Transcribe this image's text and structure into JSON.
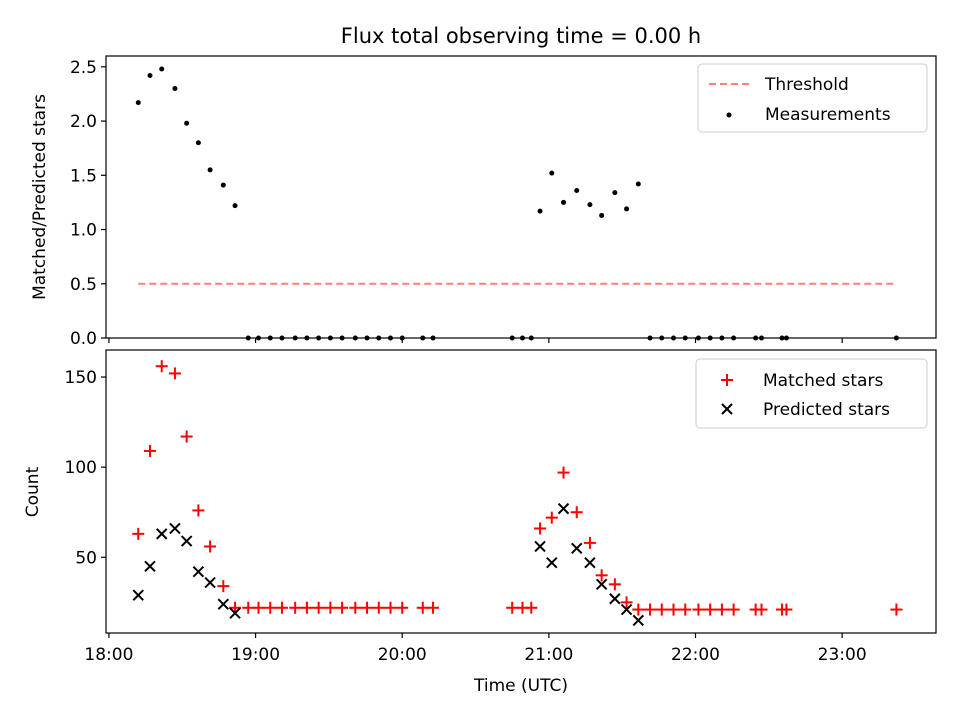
{
  "chart_data": [
    {
      "type": "scatter",
      "title": "Flux total observing time = 0.00 h",
      "xlabel": "",
      "ylabel": "Matched/Predicted stars",
      "xlim": [
        17.98,
        23.64
      ],
      "ylim": [
        0,
        2.6
      ],
      "yticks": [
        0.0,
        0.5,
        1.0,
        1.5,
        2.0,
        2.5
      ],
      "ytick_labels": [
        "0.0",
        "0.5",
        "1.0",
        "1.5",
        "2.0",
        "2.5"
      ],
      "xticks": [
        18,
        19,
        20,
        21,
        22,
        23
      ],
      "legend_position": "top-right",
      "series": [
        {
          "name": "Threshold",
          "style": "dashed-line",
          "color": "#ff7f7f",
          "points": [
            [
              18.2,
              0.5
            ],
            [
              23.37,
              0.5
            ]
          ]
        },
        {
          "name": "Measurements",
          "style": "dot",
          "color": "#000000",
          "points": [
            [
              18.2,
              2.17
            ],
            [
              18.28,
              2.42
            ],
            [
              18.36,
              2.48
            ],
            [
              18.45,
              2.3
            ],
            [
              18.53,
              1.98
            ],
            [
              18.61,
              1.8
            ],
            [
              18.69,
              1.55
            ],
            [
              18.78,
              1.41
            ],
            [
              18.86,
              1.22
            ],
            [
              18.95,
              0.0
            ],
            [
              19.02,
              0.0
            ],
            [
              19.1,
              0.0
            ],
            [
              19.18,
              0.0
            ],
            [
              19.27,
              0.0
            ],
            [
              19.35,
              0.0
            ],
            [
              19.43,
              0.0
            ],
            [
              19.51,
              0.0
            ],
            [
              19.59,
              0.0
            ],
            [
              19.68,
              0.0
            ],
            [
              19.76,
              0.0
            ],
            [
              19.84,
              0.0
            ],
            [
              19.92,
              0.0
            ],
            [
              20.0,
              0.0
            ],
            [
              20.14,
              0.0
            ],
            [
              20.21,
              0.0
            ],
            [
              20.75,
              0.0
            ],
            [
              20.82,
              0.0
            ],
            [
              20.88,
              0.0
            ],
            [
              20.94,
              1.17
            ],
            [
              21.02,
              1.52
            ],
            [
              21.1,
              1.25
            ],
            [
              21.19,
              1.36
            ],
            [
              21.28,
              1.23
            ],
            [
              21.36,
              1.13
            ],
            [
              21.45,
              1.34
            ],
            [
              21.53,
              1.19
            ],
            [
              21.61,
              1.42
            ],
            [
              21.69,
              0.0
            ],
            [
              21.77,
              0.0
            ],
            [
              21.85,
              0.0
            ],
            [
              21.93,
              0.0
            ],
            [
              22.02,
              0.0
            ],
            [
              22.1,
              0.0
            ],
            [
              22.18,
              0.0
            ],
            [
              22.26,
              0.0
            ],
            [
              22.41,
              0.0
            ],
            [
              22.45,
              0.0
            ],
            [
              22.59,
              0.0
            ],
            [
              22.62,
              0.0
            ],
            [
              23.37,
              0.0
            ]
          ]
        }
      ]
    },
    {
      "type": "scatter",
      "title": "",
      "xlabel": "Time (UTC)",
      "ylabel": "Count",
      "xlim": [
        17.98,
        23.64
      ],
      "ylim": [
        8,
        165
      ],
      "yticks": [
        50,
        100,
        150
      ],
      "ytick_labels": [
        "50",
        "100",
        "150"
      ],
      "xticks": [
        18,
        19,
        20,
        21,
        22,
        23
      ],
      "xtick_labels": [
        "18:00",
        "19:00",
        "20:00",
        "21:00",
        "22:00",
        "23:00"
      ],
      "legend_position": "top-right",
      "series": [
        {
          "name": "Matched stars",
          "style": "plus",
          "color": "#ff0000",
          "points": [
            [
              18.2,
              63
            ],
            [
              18.28,
              109
            ],
            [
              18.36,
              156
            ],
            [
              18.45,
              152
            ],
            [
              18.53,
              117
            ],
            [
              18.61,
              76
            ],
            [
              18.69,
              56
            ],
            [
              18.78,
              34
            ],
            [
              18.86,
              22
            ],
            [
              18.95,
              22
            ],
            [
              19.02,
              22
            ],
            [
              19.1,
              22
            ],
            [
              19.18,
              22
            ],
            [
              19.27,
              22
            ],
            [
              19.35,
              22
            ],
            [
              19.43,
              22
            ],
            [
              19.51,
              22
            ],
            [
              19.59,
              22
            ],
            [
              19.68,
              22
            ],
            [
              19.76,
              22
            ],
            [
              19.84,
              22
            ],
            [
              19.92,
              22
            ],
            [
              20.0,
              22
            ],
            [
              20.14,
              22
            ],
            [
              20.21,
              22
            ],
            [
              20.75,
              22
            ],
            [
              20.82,
              22
            ],
            [
              20.88,
              22
            ],
            [
              20.94,
              66
            ],
            [
              21.02,
              72
            ],
            [
              21.1,
              97
            ],
            [
              21.19,
              75
            ],
            [
              21.28,
              58
            ],
            [
              21.36,
              40
            ],
            [
              21.45,
              35
            ],
            [
              21.53,
              25
            ],
            [
              21.61,
              21
            ],
            [
              21.69,
              21
            ],
            [
              21.77,
              21
            ],
            [
              21.85,
              21
            ],
            [
              21.93,
              21
            ],
            [
              22.02,
              21
            ],
            [
              22.1,
              21
            ],
            [
              22.18,
              21
            ],
            [
              22.26,
              21
            ],
            [
              22.41,
              21
            ],
            [
              22.45,
              21
            ],
            [
              22.59,
              21
            ],
            [
              22.62,
              21
            ],
            [
              23.37,
              21
            ]
          ]
        },
        {
          "name": "Predicted stars",
          "style": "cross",
          "color": "#000000",
          "points": [
            [
              18.2,
              29
            ],
            [
              18.28,
              45
            ],
            [
              18.36,
              63
            ],
            [
              18.45,
              66
            ],
            [
              18.53,
              59
            ],
            [
              18.61,
              42
            ],
            [
              18.69,
              36
            ],
            [
              18.78,
              24
            ],
            [
              18.86,
              19
            ],
            [
              20.94,
              56
            ],
            [
              21.02,
              47
            ],
            [
              21.1,
              77
            ],
            [
              21.19,
              55
            ],
            [
              21.28,
              47
            ],
            [
              21.36,
              35
            ],
            [
              21.45,
              27
            ],
            [
              21.53,
              21
            ],
            [
              21.61,
              15
            ]
          ]
        }
      ]
    }
  ]
}
